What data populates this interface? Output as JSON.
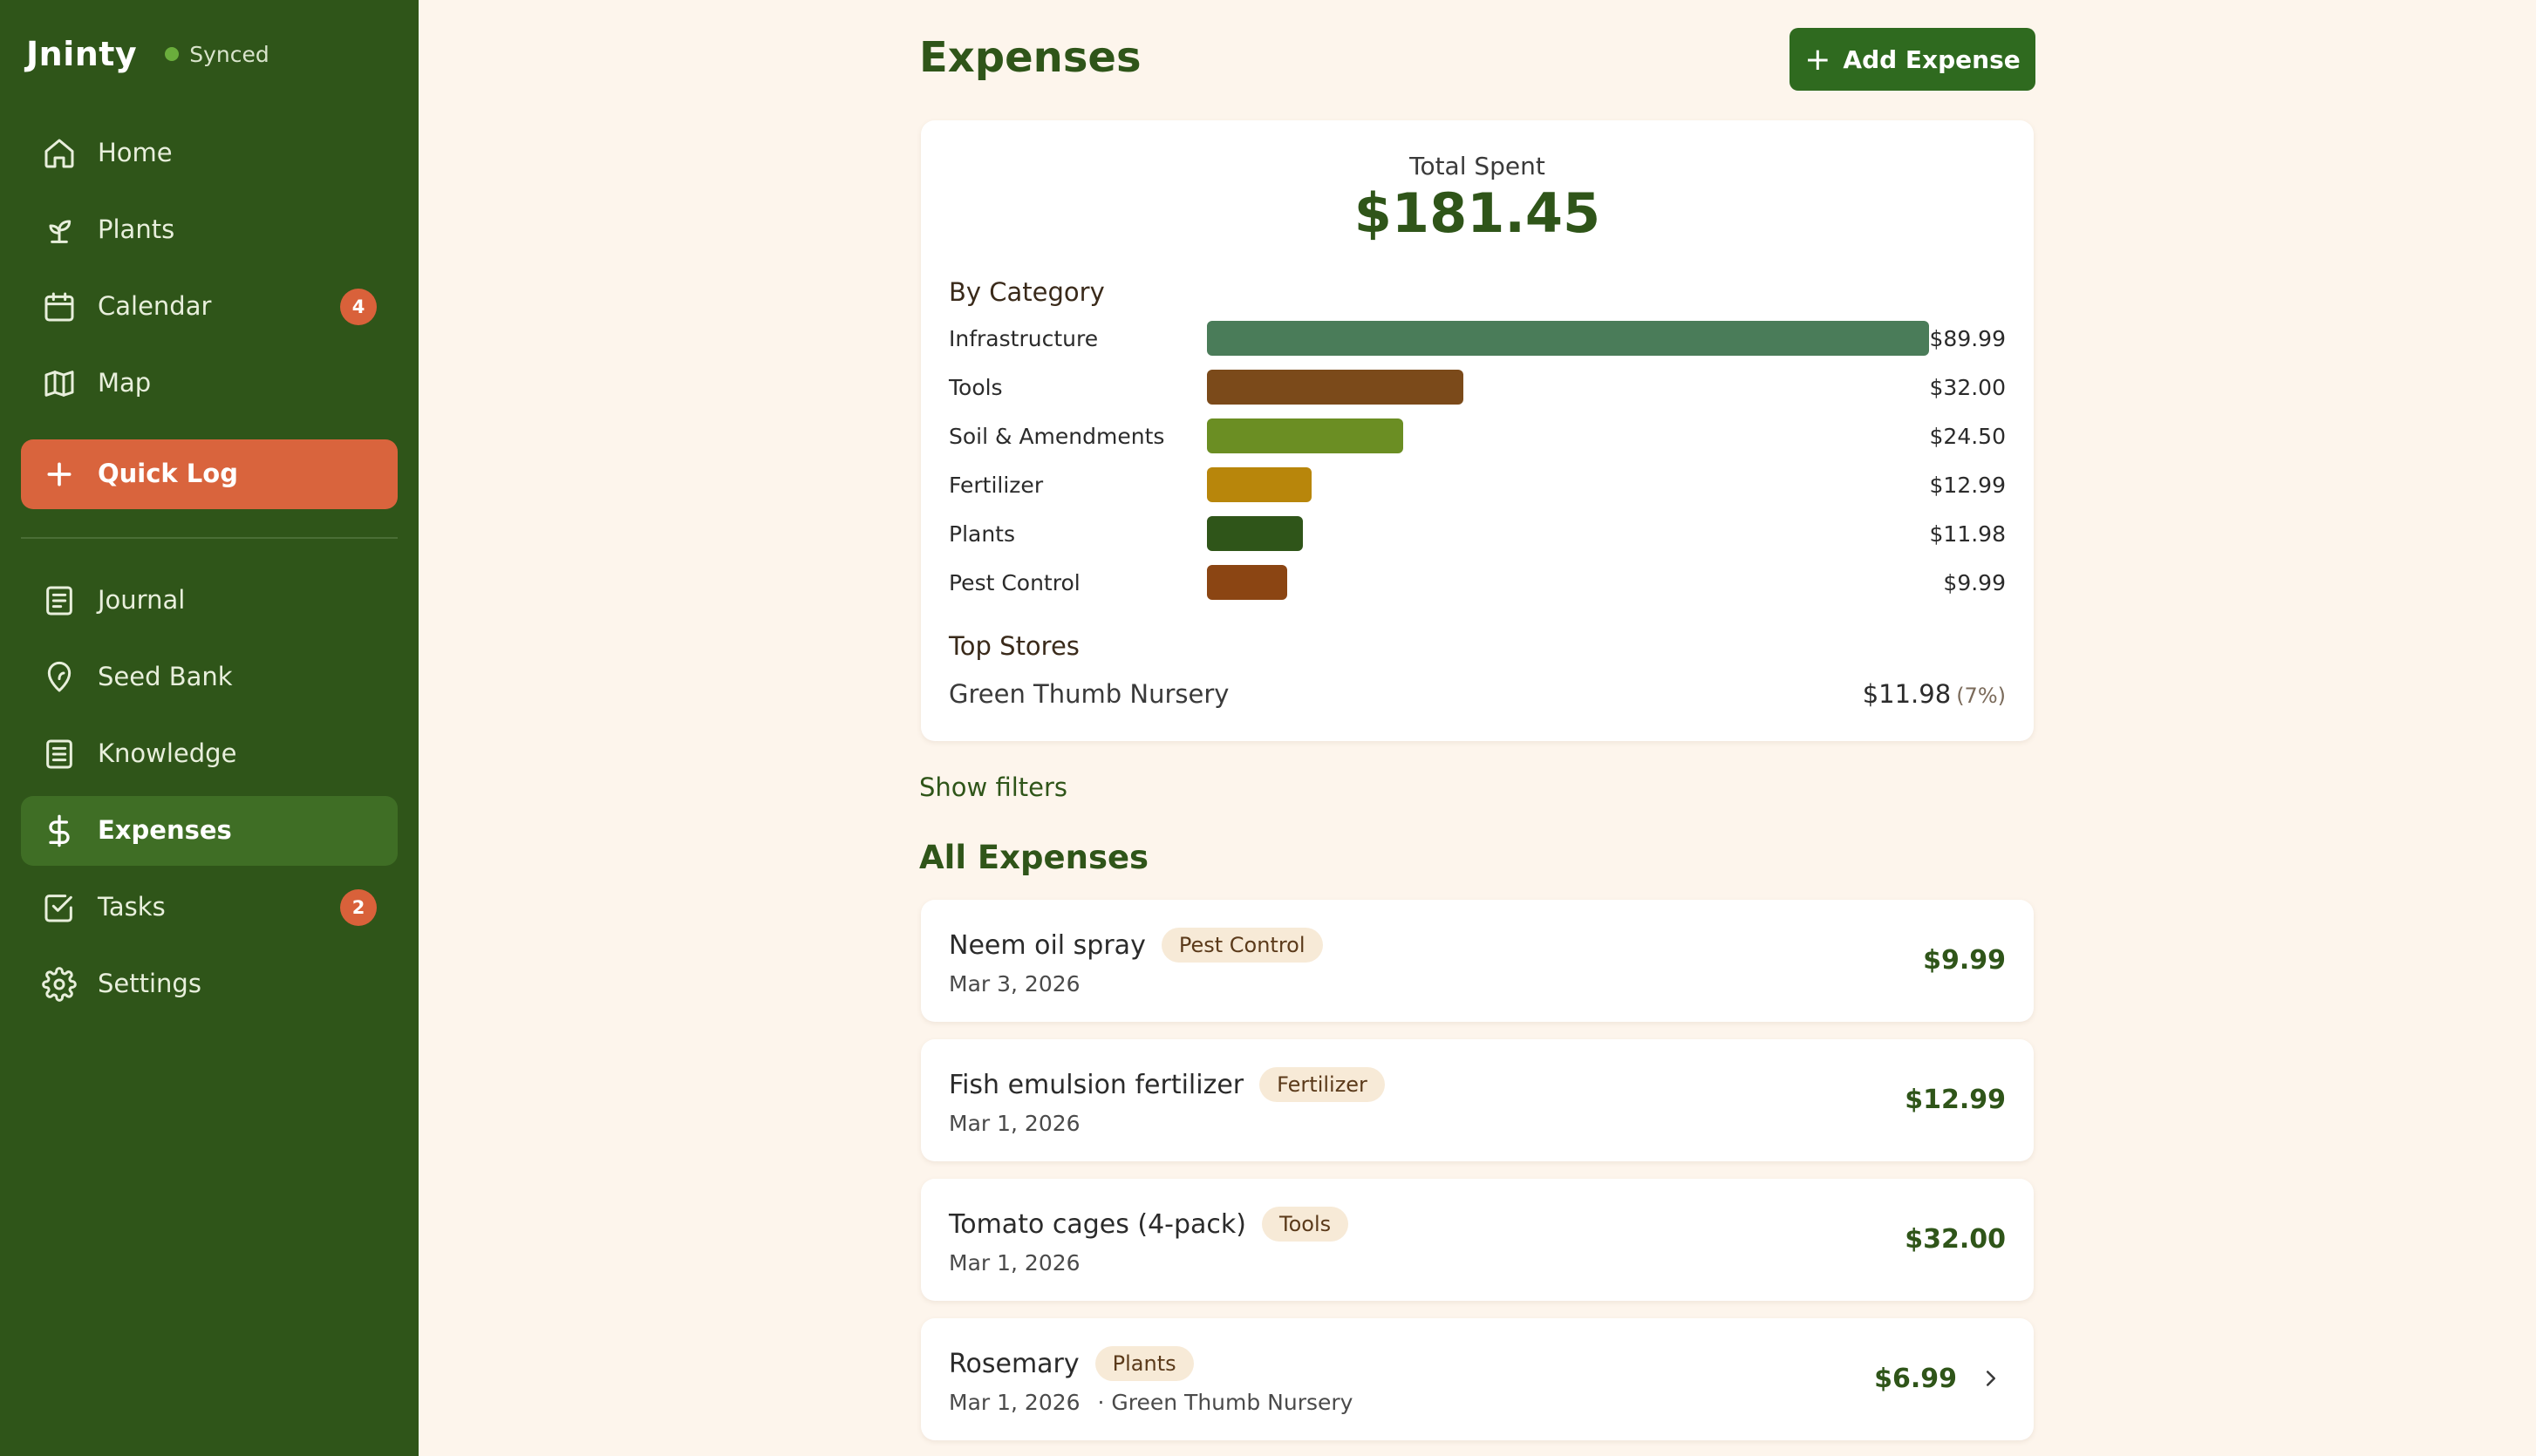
{
  "app": {
    "brand": "Jninty",
    "sync_status": "Synced",
    "colors": {
      "sidebar_bg": "#2f5519",
      "accent": "#2f6a1f",
      "quick_log": "#d9643d",
      "badge": "#d9613a",
      "page_bg": "#fdf5ec"
    }
  },
  "sidebar": {
    "items": [
      {
        "label": "Home",
        "icon": "home-icon"
      },
      {
        "label": "Plants",
        "icon": "sprout-icon"
      },
      {
        "label": "Calendar",
        "icon": "calendar-icon",
        "badge": "4"
      },
      {
        "label": "Map",
        "icon": "map-icon"
      },
      {
        "label": "Journal",
        "icon": "journal-icon"
      },
      {
        "label": "Seed Bank",
        "icon": "seed-icon"
      },
      {
        "label": "Knowledge",
        "icon": "book-icon"
      },
      {
        "label": "Expenses",
        "icon": "dollar-icon",
        "active": true
      },
      {
        "label": "Tasks",
        "icon": "checkbox-icon",
        "badge": "2"
      },
      {
        "label": "Settings",
        "icon": "gear-icon"
      }
    ],
    "quick_log": {
      "label": "Quick Log",
      "icon": "plus-icon"
    }
  },
  "header": {
    "title": "Expenses",
    "add_button_label": "Add Expense"
  },
  "summary": {
    "total_label": "Total Spent",
    "total_value": "$181.45",
    "by_category_heading": "By Category",
    "categories": [
      {
        "name": "Infrastructure",
        "amount": "$89.99",
        "value": 89.99,
        "color": "#4a7c59"
      },
      {
        "name": "Tools",
        "amount": "$32.00",
        "value": 32.0,
        "color": "#7b4a1a"
      },
      {
        "name": "Soil & Amendments",
        "amount": "$24.50",
        "value": 24.5,
        "color": "#6b8e23"
      },
      {
        "name": "Fertilizer",
        "amount": "$12.99",
        "value": 12.99,
        "color": "#b8860b"
      },
      {
        "name": "Plants",
        "amount": "$11.98",
        "value": 11.98,
        "color": "#2f5519"
      },
      {
        "name": "Pest Control",
        "amount": "$9.99",
        "value": 9.99,
        "color": "#8b4513"
      }
    ],
    "top_stores_heading": "Top Stores",
    "top_stores": [
      {
        "name": "Green Thumb Nursery",
        "amount": "$11.98",
        "percent": "(7%)"
      }
    ]
  },
  "filters": {
    "toggle_label": "Show filters"
  },
  "expenses": {
    "heading": "All Expenses",
    "items": [
      {
        "name": "Neem oil spray",
        "tag": "Pest Control",
        "date": "Mar 3, 2026",
        "store": "",
        "amount": "$9.99"
      },
      {
        "name": "Fish emulsion fertilizer",
        "tag": "Fertilizer",
        "date": "Mar 1, 2026",
        "store": "",
        "amount": "$12.99"
      },
      {
        "name": "Tomato cages (4-pack)",
        "tag": "Tools",
        "date": "Mar 1, 2026",
        "store": "",
        "amount": "$32.00"
      },
      {
        "name": "Rosemary",
        "tag": "Plants",
        "date": "Mar 1, 2026",
        "store": "· Green Thumb Nursery",
        "amount": "$6.99"
      }
    ]
  }
}
